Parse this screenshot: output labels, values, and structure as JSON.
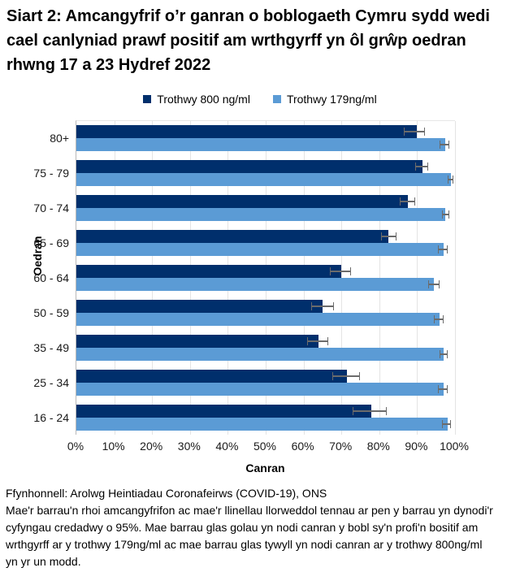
{
  "title": "Siart 2: Amcangyfrif o’r ganran o boblogaeth Cymru sydd wedi cael canlyniad prawf positif am wrthgyrff yn ôl grŵp oedran rhwng 17 a 23 Hydref 2022",
  "legend": {
    "series_dark": "Trothwy 800 ng/ml",
    "series_light": "Trothwy 179ng/ml"
  },
  "colors": {
    "dark": "#002f6c",
    "light": "#5b9bd5",
    "error": "#6b6b6b",
    "gridline": "#e4e4e4",
    "axis": "#b9b9b9"
  },
  "chart_data": {
    "type": "bar",
    "orientation": "horizontal",
    "title": "Siart 2: Amcangyfrif o’r ganran o boblogaeth Cymru sydd wedi cael canlyniad prawf positif am wrthgyrff yn ôl grŵp oedran rhwng 17 a 23 Hydref 2022",
    "categories": [
      "80+",
      "75 - 79",
      "70 - 74",
      "65 - 69",
      "60 - 64",
      "50 - 59",
      "35 - 49",
      "25 - 34",
      "16 - 24"
    ],
    "series": [
      {
        "name": "Trothwy 800 ng/ml",
        "color_key": "dark",
        "values": [
          90,
          91.5,
          87.5,
          82.5,
          70,
          65,
          64,
          71.5,
          78
        ],
        "ci": [
          [
            86.5,
            92
          ],
          [
            89.5,
            93
          ],
          [
            85.5,
            89.5
          ],
          [
            80.5,
            84.5
          ],
          [
            67,
            72.5
          ],
          [
            62,
            68
          ],
          [
            61,
            66.5
          ],
          [
            67.5,
            75
          ],
          [
            73,
            82
          ]
        ]
      },
      {
        "name": "Trothwy 179ng/ml",
        "color_key": "light",
        "values": [
          97.5,
          99,
          97.5,
          97,
          94.5,
          96,
          97,
          97,
          98
        ],
        "ci": [
          [
            96,
            98.5
          ],
          [
            98,
            99.5
          ],
          [
            96.5,
            98.5
          ],
          [
            95.5,
            98
          ],
          [
            93,
            96
          ],
          [
            94.5,
            97
          ],
          [
            96,
            98
          ],
          [
            95.5,
            98
          ],
          [
            96.5,
            99
          ]
        ]
      }
    ],
    "xlabel": "Canran",
    "ylabel": "Oedran",
    "xlim": [
      0,
      100
    ],
    "xticks": [
      "0%",
      "10%",
      "20%",
      "30%",
      "40%",
      "50%",
      "60%",
      "70%",
      "80%",
      "90%",
      "100%"
    ],
    "grid": true,
    "legend_position": "top",
    "error_bars": "95% credible intervals"
  },
  "footer": {
    "source": "Ffynhonnell: Arolwg Heintiadau Coronafeirws (COVID-19), ONS",
    "note": "Mae'r barrau'n rhoi amcangyfrifon ac mae'r llinellau llorweddol tennau ar pen y barrau yn dynodi'r cyfyngau credadwy o 95%. Mae barrau glas golau yn nodi canran y bobl sy'n profi'n bositif am wrthgyrff ar y trothwy 179ng/ml ac mae barrau glas tywyll yn nodi canran ar y trothwy 800ng/ml yn yr un modd."
  }
}
